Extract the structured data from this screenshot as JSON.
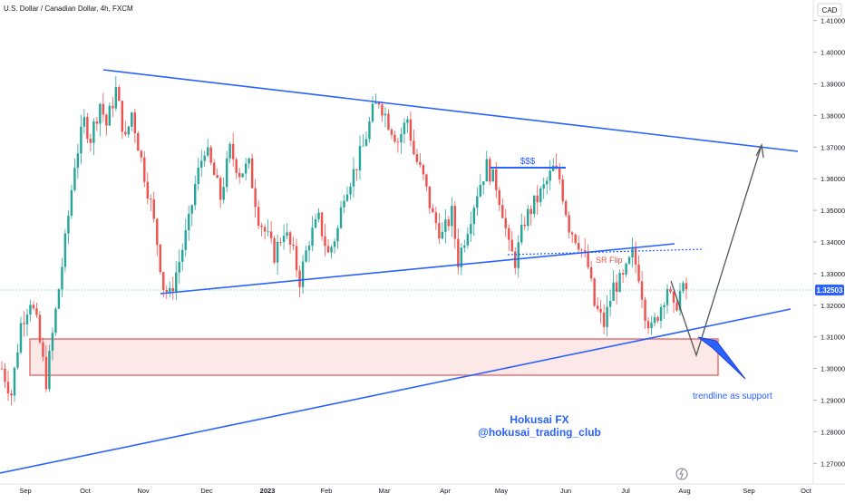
{
  "chart_data": {
    "type": "candlestick",
    "title": "U.S. Dollar / Canadian Dollar, 4h, FXCM",
    "currency": "CAD",
    "y_ticks": [
      "1.41000",
      "1.40000",
      "1.39000",
      "1.38000",
      "1.37000",
      "1.36000",
      "1.35000",
      "1.34000",
      "1.33000",
      "1.32000",
      "1.31000",
      "1.30000",
      "1.29000",
      "1.28000",
      "1.27000"
    ],
    "ylim": [
      1.2635,
      1.4165
    ],
    "x_ticks": [
      "Sep",
      "Oct",
      "Nov",
      "Dec",
      "2023",
      "Feb",
      "Mar",
      "Apr",
      "May",
      "Jun",
      "Jul",
      "Aug",
      "Sep",
      "Oct"
    ],
    "current_price": "1.32503",
    "price_path": [
      [
        0,
        1.3
      ],
      [
        3,
        1.292
      ],
      [
        6,
        1.314
      ],
      [
        9,
        1.322
      ],
      [
        11,
        1.314
      ],
      [
        14,
        1.296
      ],
      [
        17,
        1.318
      ],
      [
        20,
        1.34
      ],
      [
        23,
        1.365
      ],
      [
        26,
        1.378
      ],
      [
        28,
        1.373
      ],
      [
        31,
        1.384
      ],
      [
        33,
        1.377
      ],
      [
        36,
        1.388
      ],
      [
        39,
        1.372
      ],
      [
        41,
        1.381
      ],
      [
        44,
        1.366
      ],
      [
        47,
        1.352
      ],
      [
        49,
        1.34
      ],
      [
        51,
        1.326
      ],
      [
        53,
        1.323
      ],
      [
        56,
        1.334
      ],
      [
        59,
        1.346
      ],
      [
        61,
        1.358
      ],
      [
        64,
        1.37
      ],
      [
        67,
        1.361
      ],
      [
        69,
        1.354
      ],
      [
        72,
        1.369
      ],
      [
        75,
        1.362
      ],
      [
        78,
        1.364
      ],
      [
        81,
        1.348
      ],
      [
        84,
        1.341
      ],
      [
        86,
        1.336
      ],
      [
        89,
        1.344
      ],
      [
        92,
        1.336
      ],
      [
        94,
        1.328
      ],
      [
        97,
        1.341
      ],
      [
        100,
        1.347
      ],
      [
        103,
        1.336
      ],
      [
        106,
        1.344
      ],
      [
        108,
        1.356
      ],
      [
        111,
        1.362
      ],
      [
        114,
        1.37
      ],
      [
        117,
        1.381
      ],
      [
        119,
        1.385
      ],
      [
        122,
        1.378
      ],
      [
        125,
        1.372
      ],
      [
        128,
        1.379
      ],
      [
        130,
        1.368
      ],
      [
        133,
        1.36
      ],
      [
        136,
        1.348
      ],
      [
        139,
        1.342
      ],
      [
        142,
        1.349
      ],
      [
        144,
        1.334
      ],
      [
        147,
        1.345
      ],
      [
        150,
        1.356
      ],
      [
        153,
        1.364
      ],
      [
        156,
        1.358
      ],
      [
        158,
        1.35
      ],
      [
        160,
        1.338
      ],
      [
        162,
        1.334
      ],
      [
        165,
        1.347
      ],
      [
        168,
        1.352
      ],
      [
        171,
        1.357
      ],
      [
        174,
        1.363
      ],
      [
        176,
        1.36
      ],
      [
        179,
        1.345
      ],
      [
        182,
        1.34
      ],
      [
        185,
        1.332
      ],
      [
        187,
        1.32
      ],
      [
        190,
        1.314
      ],
      [
        193,
        1.326
      ],
      [
        196,
        1.328
      ],
      [
        199,
        1.336
      ],
      [
        201,
        1.33
      ],
      [
        203,
        1.318
      ],
      [
        205,
        1.312
      ],
      [
        208,
        1.32
      ],
      [
        210,
        1.326
      ],
      [
        212,
        1.318
      ],
      [
        214,
        1.324
      ],
      [
        216,
        1.325
      ]
    ],
    "annotations": [
      "$$$",
      "SR Flip",
      "trendline as support"
    ],
    "watermark": [
      "Hokusai FX",
      "@hokusai_trading_club"
    ],
    "colors": {
      "up": "#26a69a",
      "down": "#ef5350",
      "trendline": "#2962ff",
      "zone_border": "#e57373",
      "zone_fill": "#fde8e8",
      "projection": "#555555"
    }
  }
}
